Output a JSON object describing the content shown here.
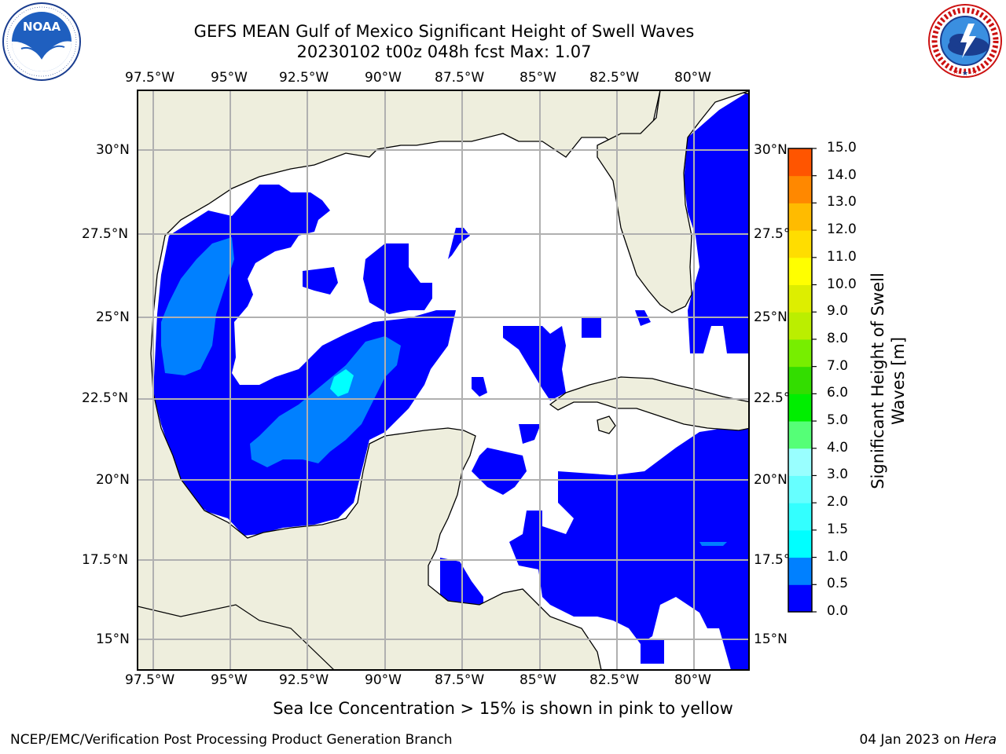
{
  "title_line1": "GEFS MEAN Gulf of Mexico Significant Height of Swell Waves",
  "title_line2": "20230102 t00z 048h fcst   Max: 1.07",
  "noaa_logo_label": "NOAA",
  "noaa_logo_ring_text": "NATIONAL OCEANIC AND ATMOSPHERIC ADMINISTRATION · U.S. DEPARTMENT OF COMMERCE",
  "nws_logo_ring_text": "NATIONAL WEATHER SERVICE",
  "lon_labels": [
    "97.5°W",
    "95°W",
    "92.5°W",
    "90°W",
    "87.5°W",
    "85°W",
    "82.5°W",
    "80°W"
  ],
  "lat_labels_left": [
    "30°N",
    "27.5°N",
    "25°N",
    "22.5°N",
    "20°N",
    "17.5°N",
    "15°N"
  ],
  "lat_labels_right": [
    "30°N",
    "27.5°",
    "25°N",
    "22.5°",
    "20°N",
    "17.5°",
    "15°N"
  ],
  "colorbar": {
    "title_line1": "Significant Height of Swell",
    "title_line2": "Waves [m]",
    "tick_labels": [
      "15.0",
      "14.0",
      "13.0",
      "12.0",
      "11.0",
      "10.0",
      "9.0",
      "8.0",
      "7.0",
      "6.0",
      "5.0",
      "4.0",
      "3.0",
      "2.0",
      "1.5",
      "1.0",
      "0.5",
      "0.0"
    ],
    "levels": [
      0.0,
      0.5,
      1.0,
      1.5,
      2.0,
      3.0,
      4.0,
      5.0,
      6.0,
      7.0,
      8.0,
      9.0,
      10.0,
      11.0,
      12.0,
      13.0,
      14.0,
      15.0
    ],
    "colors": [
      "#0000ff",
      "#0080ff",
      "#00ffff",
      "#33ffff",
      "#66ffff",
      "#99ffff",
      "#55ff77",
      "#00ee00",
      "#33dd00",
      "#77ee00",
      "#bbee00",
      "#ddee00",
      "#ffff00",
      "#ffdd00",
      "#ffbb00",
      "#ff8800",
      "#ff5500",
      "#ff2200",
      "#ff0000"
    ]
  },
  "map_colors": {
    "land": "#eeeedd",
    "ocean_white": "#ffffff",
    "swell_low": "#0000ff",
    "swell_mid": "#0080ff",
    "swell_high": "#00ffff",
    "grid": "#b0b0b0"
  },
  "footer_note": "Sea Ice Concentration > 15% is shown in pink to yellow",
  "footer_left": "NCEP/EMC/Verification Post Processing Product Generation Branch",
  "footer_right_date": "04 Jan 2023 on ",
  "footer_right_host": "Hera"
}
